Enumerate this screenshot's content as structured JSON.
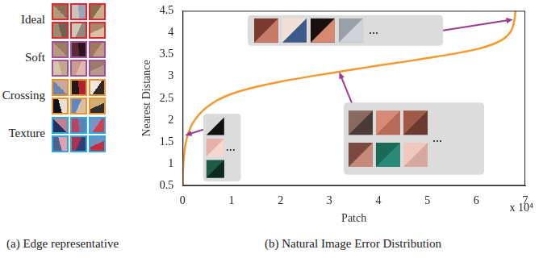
{
  "panel_a": {
    "caption": "(a) Edge representative",
    "groups": [
      {
        "label": "Ideal",
        "color": "#e3262f"
      },
      {
        "label": "Soft",
        "color": "#a5509b"
      },
      {
        "label": "Crossing",
        "color": "#f0922b"
      },
      {
        "label": "Texture",
        "color": "#29abe2"
      }
    ]
  },
  "chart_data": {
    "type": "line",
    "title": "(b) Natural Image Error Distribution",
    "xlabel": "Patch",
    "ylabel": "Nearest Distance",
    "x_multiplier": "x 10⁴",
    "x": [
      0,
      0.01,
      0.03,
      0.06,
      0.1,
      0.15,
      0.2,
      0.3,
      0.4,
      0.5,
      0.7,
      1,
      1.5,
      2,
      2.5,
      3,
      3.5,
      4,
      4.5,
      5,
      5.5,
      6,
      6.3,
      6.5,
      6.6,
      6.7,
      6.75,
      6.78,
      6.8
    ],
    "values": [
      0.5,
      0.9,
      1.2,
      1.45,
      1.65,
      1.8,
      1.92,
      2.08,
      2.2,
      2.3,
      2.45,
      2.6,
      2.76,
      2.88,
      2.98,
      3.07,
      3.16,
      3.25,
      3.33,
      3.42,
      3.51,
      3.62,
      3.72,
      3.82,
      3.9,
      4.02,
      4.15,
      4.3,
      4.5
    ],
    "color": "#f39a2e",
    "xlim": [
      0,
      7
    ],
    "xticks": [
      0,
      1,
      2,
      3,
      4,
      5,
      6,
      7
    ],
    "ylim": [
      0.5,
      4.5
    ],
    "yticks": [
      0.5,
      1,
      1.5,
      2,
      2.5,
      3,
      3.5,
      4,
      4.5
    ],
    "grid": false,
    "annotations": [
      {
        "text": "...",
        "x": 0.05,
        "y": 1.65
      },
      {
        "text": "...",
        "x": 3.2,
        "y": 3.1
      },
      {
        "text": "...",
        "x": 6.75,
        "y": 4.3
      }
    ]
  }
}
